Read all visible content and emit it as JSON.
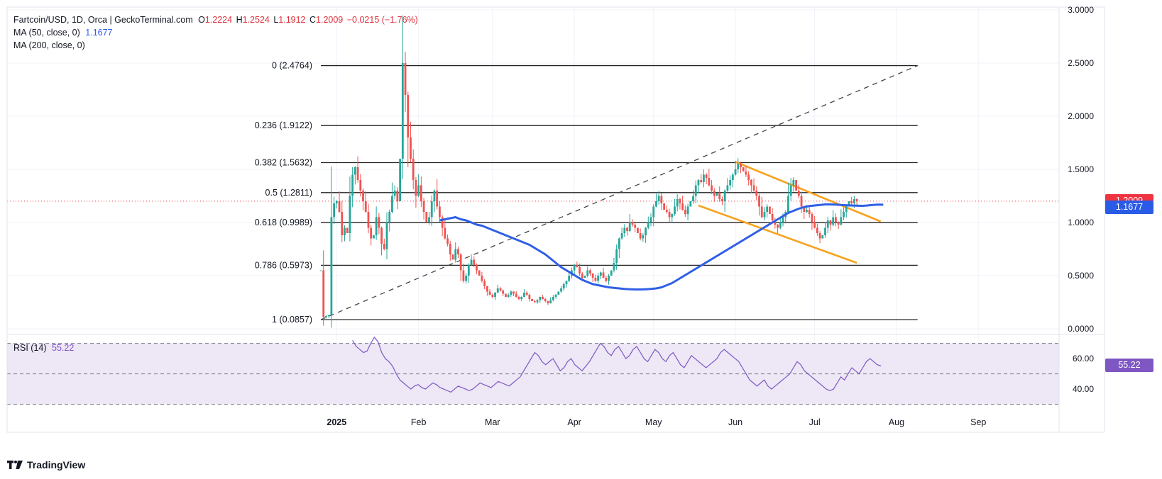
{
  "header": {
    "symbol": "Fartcoin/USD, 1D, Orca | GeckoTerminal.com",
    "o_label": "O",
    "o_value": "1.2224",
    "h_label": "H",
    "h_value": "1.2524",
    "l_label": "L",
    "l_value": "1.1912",
    "c_label": "C",
    "c_value": "1.2009",
    "change": "−0.0215 (−1.76%)",
    "ma50_label": "MA (50, close, 0)",
    "ma50_value": "1.1677",
    "ma200_label": "MA (200, close, 0)",
    "rsi_label": "RSI (14)",
    "rsi_value": "55.22"
  },
  "footer": {
    "brand": "TradingView"
  },
  "colors": {
    "up": "#26a69a",
    "down": "#ef5350",
    "ma50": "#2f5fe6",
    "channel": "#f7a21e",
    "rsi": "#7e57c2",
    "rsi_band": "#ede7f6",
    "price_tag": "#ef3340",
    "ma_tag": "#2a5be6"
  },
  "chart_data": [
    {
      "type": "candlestick",
      "title": "Fartcoin/USD, 1D, Orca",
      "start_date": "2024-12-26",
      "x_tick_labels": [
        "2025",
        "Feb",
        "Mar",
        "Apr",
        "May",
        "Jun",
        "Jul",
        "Aug",
        "Sep"
      ],
      "x_tick_days": [
        6,
        37,
        65,
        96,
        126,
        157,
        187,
        218,
        249
      ],
      "y_range": [
        0,
        3
      ],
      "y_tick_labels": [
        "0.0000",
        "0.5000",
        "1.0000",
        "1.5000",
        "2.0000",
        "2.5000",
        "3.0000"
      ],
      "y_tick_values": [
        0,
        0.5,
        1.0,
        1.5,
        2.0,
        2.5,
        3.0
      ],
      "close_series": [
        0.55,
        0.11,
        0.12,
        0.13,
        1.05,
        1.18,
        1.2,
        1.1,
        0.88,
        0.95,
        0.9,
        1.25,
        1.45,
        1.52,
        1.4,
        1.3,
        1.2,
        1.1,
        0.95,
        0.85,
        0.88,
        1.05,
        0.95,
        0.8,
        0.75,
        1.0,
        1.1,
        1.25,
        1.3,
        1.2,
        1.6,
        2.5,
        2.2,
        1.8,
        1.6,
        1.4,
        1.25,
        1.35,
        1.2,
        1.1,
        1.0,
        1.05,
        1.2,
        1.3,
        1.15,
        1.05,
        0.95,
        0.85,
        0.8,
        0.7,
        0.65,
        0.75,
        0.7,
        0.55,
        0.45,
        0.5,
        0.6,
        0.65,
        0.6,
        0.55,
        0.5,
        0.45,
        0.4,
        0.35,
        0.32,
        0.3,
        0.34,
        0.38,
        0.36,
        0.33,
        0.3,
        0.32,
        0.35,
        0.33,
        0.3,
        0.28,
        0.3,
        0.34,
        0.32,
        0.28,
        0.26,
        0.25,
        0.27,
        0.3,
        0.28,
        0.26,
        0.24,
        0.27,
        0.3,
        0.32,
        0.35,
        0.38,
        0.42,
        0.45,
        0.5,
        0.55,
        0.6,
        0.58,
        0.52,
        0.48,
        0.5,
        0.55,
        0.52,
        0.48,
        0.45,
        0.5,
        0.53,
        0.48,
        0.45,
        0.5,
        0.55,
        0.62,
        0.75,
        0.85,
        0.9,
        0.95,
        0.92,
        1.0,
        0.98,
        0.95,
        0.9,
        0.85,
        0.88,
        0.95,
        1.0,
        1.05,
        1.15,
        1.2,
        1.25,
        1.18,
        1.12,
        1.1,
        1.05,
        1.08,
        1.15,
        1.22,
        1.18,
        1.12,
        1.08,
        1.15,
        1.2,
        1.25,
        1.35,
        1.4,
        1.38,
        1.45,
        1.42,
        1.35,
        1.3,
        1.25,
        1.28,
        1.22,
        1.2,
        1.3,
        1.35,
        1.4,
        1.45,
        1.5,
        1.55,
        1.52,
        1.48,
        1.45,
        1.4,
        1.35,
        1.3,
        1.25,
        1.15,
        1.05,
        1.1,
        1.15,
        1.08,
        1.02,
        0.98,
        0.95,
        1.0,
        1.05,
        1.1,
        1.25,
        1.35,
        1.4,
        1.3,
        1.25,
        1.15,
        1.1,
        1.12,
        1.08,
        1.0,
        0.95,
        0.9,
        0.85,
        0.88,
        0.95,
        1.02,
        0.98,
        1.05,
        1.0,
        0.98,
        1.05,
        1.1,
        1.15,
        1.2,
        1.18,
        1.22,
        1.2
      ],
      "ma50_series": [
        1.02,
        1.03,
        1.04,
        1.05,
        1.03,
        1.02,
        1.0,
        0.98,
        0.97,
        0.95,
        0.93,
        0.91,
        0.89,
        0.87,
        0.85,
        0.83,
        0.81,
        0.79,
        0.76,
        0.73,
        0.7,
        0.66,
        0.62,
        0.58,
        0.55,
        0.52,
        0.49,
        0.46,
        0.44,
        0.42,
        0.41,
        0.4,
        0.39,
        0.385,
        0.38,
        0.375,
        0.372,
        0.37,
        0.37,
        0.372,
        0.375,
        0.38,
        0.39,
        0.41,
        0.43,
        0.46,
        0.49,
        0.52,
        0.55,
        0.58,
        0.61,
        0.64,
        0.67,
        0.7,
        0.73,
        0.76,
        0.79,
        0.82,
        0.85,
        0.88,
        0.91,
        0.94,
        0.97,
        1.0,
        1.03,
        1.06,
        1.09,
        1.11,
        1.13,
        1.145,
        1.155,
        1.16,
        1.165,
        1.17,
        1.17,
        1.168,
        1.165,
        1.162,
        1.16,
        1.158,
        1.157,
        1.16,
        1.165,
        1.168,
        1.1677
      ],
      "ma50_start_day": 45,
      "fibonacci": [
        {
          "label": "0 (2.4764)",
          "value": 2.4764
        },
        {
          "label": "0.236 (1.9122)",
          "value": 1.9122
        },
        {
          "label": "0.382 (1.5632)",
          "value": 1.5632
        },
        {
          "label": "0.5 (1.2811)",
          "value": 1.2811
        },
        {
          "label": "0.618 (0.9989)",
          "value": 0.9989
        },
        {
          "label": "0.786 (0.5973)",
          "value": 0.5973
        },
        {
          "label": "1 (0.0857)",
          "value": 0.0857
        }
      ],
      "fib_day_range": [
        0,
        226
      ],
      "trend_dashed": {
        "from_day": 0,
        "from_price": 0.0857,
        "to_day": 226,
        "to_price": 2.4764
      },
      "channel_upper": {
        "from_day": 157,
        "from_price": 1.57,
        "to_day": 212,
        "to_price": 1.01
      },
      "channel_lower": {
        "from_day": 143,
        "from_price": 1.16,
        "to_day": 203,
        "to_price": 0.62
      },
      "last_price": 1.2009,
      "last_price_label": "1.2009",
      "ma50_last": 1.1677,
      "ma50_last_label": "1.1677"
    },
    {
      "type": "line",
      "title": "RSI (14)",
      "y_range": [
        30,
        75
      ],
      "y_tick_labels": [
        "40.00",
        "60.00"
      ],
      "y_tick_values": [
        40,
        60
      ],
      "levels": [
        70,
        50,
        30
      ],
      "start_day": 12,
      "values": [
        72,
        68,
        66,
        64,
        65,
        70,
        74,
        71,
        64,
        60,
        58,
        55,
        50,
        46,
        44,
        42,
        40,
        42,
        43,
        41,
        40,
        42,
        44,
        43,
        41,
        40,
        39,
        38,
        40,
        42,
        41,
        40,
        39,
        40,
        42,
        44,
        43,
        42,
        41,
        43,
        45,
        44,
        43,
        42,
        44,
        46,
        48,
        52,
        56,
        60,
        64,
        62,
        58,
        56,
        58,
        60,
        56,
        52,
        54,
        58,
        60,
        56,
        54,
        52,
        55,
        58,
        62,
        66,
        70,
        68,
        64,
        62,
        66,
        68,
        64,
        60,
        62,
        66,
        68,
        64,
        60,
        58,
        62,
        66,
        64,
        60,
        58,
        62,
        64,
        60,
        56,
        54,
        58,
        62,
        60,
        58,
        56,
        54,
        56,
        58,
        60,
        64,
        66,
        64,
        62,
        60,
        58,
        54,
        50,
        46,
        44,
        42,
        44,
        46,
        42,
        40,
        42,
        44,
        46,
        48,
        50,
        54,
        58,
        56,
        52,
        50,
        48,
        46,
        44,
        42,
        40,
        39,
        40,
        44,
        48,
        46,
        50,
        54,
        52,
        50,
        54,
        58,
        60,
        58,
        56,
        55.22
      ],
      "last_label": "55.22"
    }
  ]
}
